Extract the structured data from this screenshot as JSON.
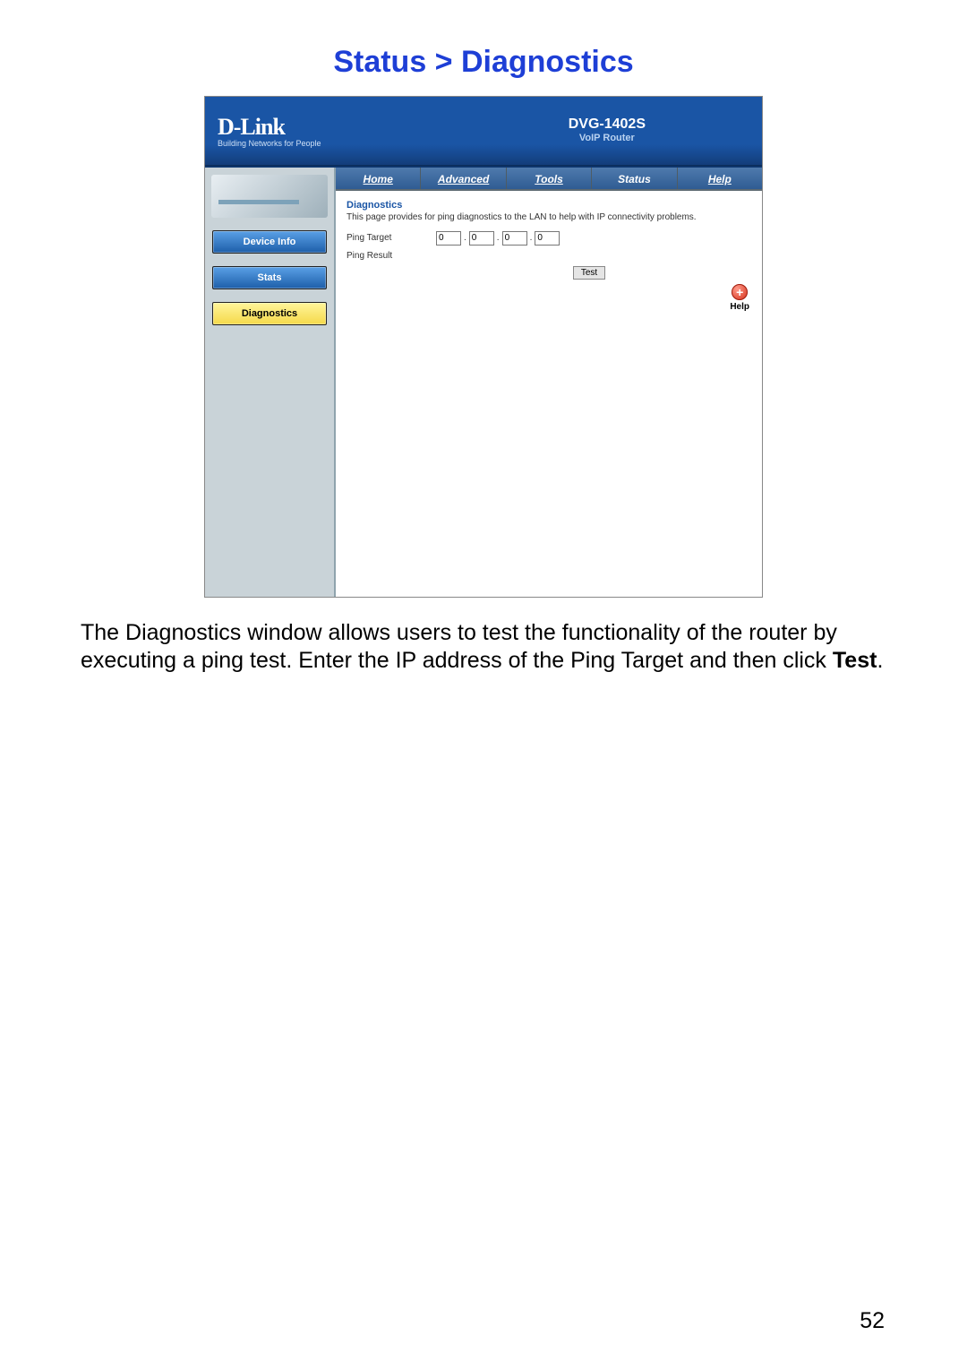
{
  "page": {
    "title": "Status > Diagnostics",
    "title_color": "#1e3fd6",
    "number": "52"
  },
  "router_ui": {
    "logo_text": "D-Link",
    "logo_tagline": "Building Networks for People",
    "model": "DVG-1402S",
    "model_sub": "VoIP Router",
    "tabs": [
      "Home",
      "Advanced",
      "Tools",
      "Status",
      "Help"
    ],
    "active_tab": "Status",
    "sidebar": {
      "items": [
        {
          "label": "Device Info",
          "style": "blue"
        },
        {
          "label": "Stats",
          "style": "blue"
        },
        {
          "label": "Diagnostics",
          "style": "yellow"
        }
      ]
    },
    "content": {
      "section_title": "Diagnostics",
      "description": "This page provides for ping diagnostics to the LAN to help with IP connectivity problems.",
      "ping_target_label": "Ping Target",
      "ping_target_values": [
        "0",
        "0",
        "0",
        "0"
      ],
      "ping_result_label": "Ping Result",
      "test_button": "Test",
      "help_label": "Help"
    }
  },
  "body_paragraph": {
    "prefix": "The Diagnostics window allows users to test the functionality of the router by executing a ping test. Enter the IP address of the Ping Target and then click ",
    "bold": "Test",
    "suffix": "."
  },
  "colors": {
    "banner_bg": "#1a55a5",
    "tab_bg": "#2f5c93",
    "sidebar_bg": "#c9d3d8",
    "side_btn_blue": "#1d5ea9",
    "side_btn_yellow": "#f5d94a",
    "help_red": "#d42b14"
  }
}
